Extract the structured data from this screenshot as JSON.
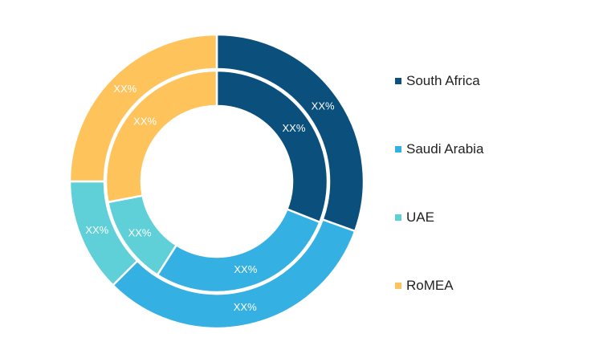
{
  "chart_data": {
    "type": "pie",
    "subtype": "donut-two-ring",
    "title": "",
    "legend_position": "right",
    "categories": [
      "South Africa",
      "Saudi Arabia",
      "UAE",
      "RoMEA"
    ],
    "colors": [
      "#0b4f7d",
      "#35b0e3",
      "#5fd0d8",
      "#ffc35c"
    ],
    "series": [
      {
        "ring": "outer",
        "values": [
          30.5,
          32.0,
          12.5,
          25.0
        ],
        "labels": [
          "XX%",
          "XX%",
          "XX%",
          "XX%"
        ]
      },
      {
        "ring": "inner",
        "values": [
          31.0,
          28.0,
          13.0,
          28.0
        ],
        "labels": [
          "XX%",
          "XX%",
          "XX%",
          "XX%"
        ]
      }
    ]
  }
}
